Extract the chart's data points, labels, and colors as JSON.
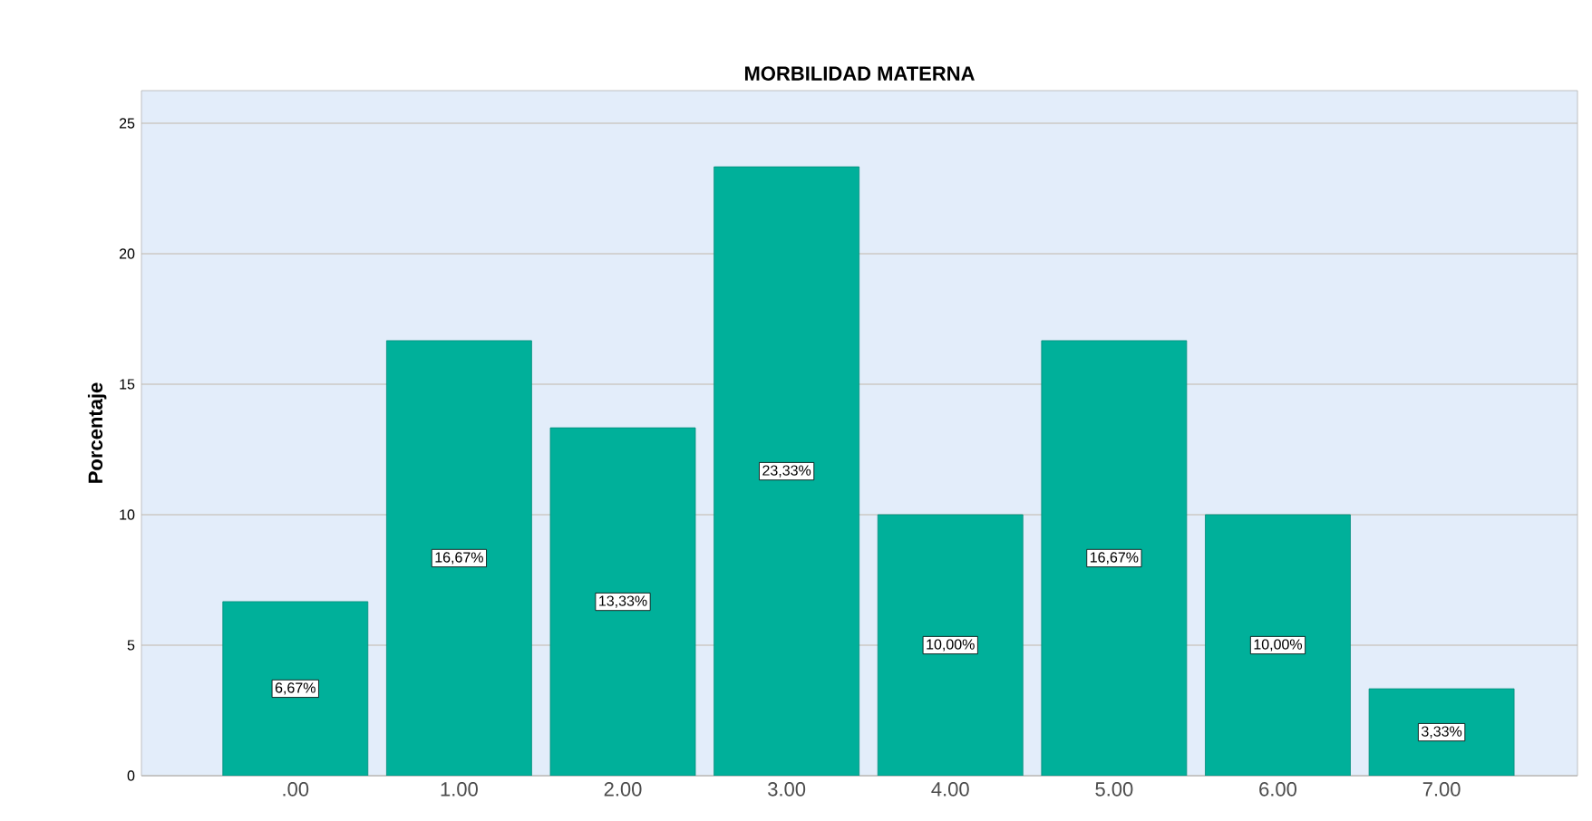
{
  "chart_data": {
    "type": "bar",
    "title": "MORBILIDAD MATERNA",
    "ylabel": "Porcentaje",
    "categories": [
      ".00",
      "1.00",
      "2.00",
      "3.00",
      "4.00",
      "5.00",
      "6.00",
      "7.00"
    ],
    "values": [
      6.67,
      16.67,
      13.33,
      23.33,
      10.0,
      16.67,
      10.0,
      3.33
    ],
    "value_labels": [
      "6,67%",
      "16,67%",
      "13,33%",
      "23,33%",
      "10,00%",
      "16,67%",
      "10,00%",
      "3,33%"
    ],
    "color": "#00b09a",
    "ylim": [
      0,
      26.25
    ],
    "yticks": [
      0,
      5,
      10,
      15,
      20,
      25
    ],
    "grid": "y"
  }
}
